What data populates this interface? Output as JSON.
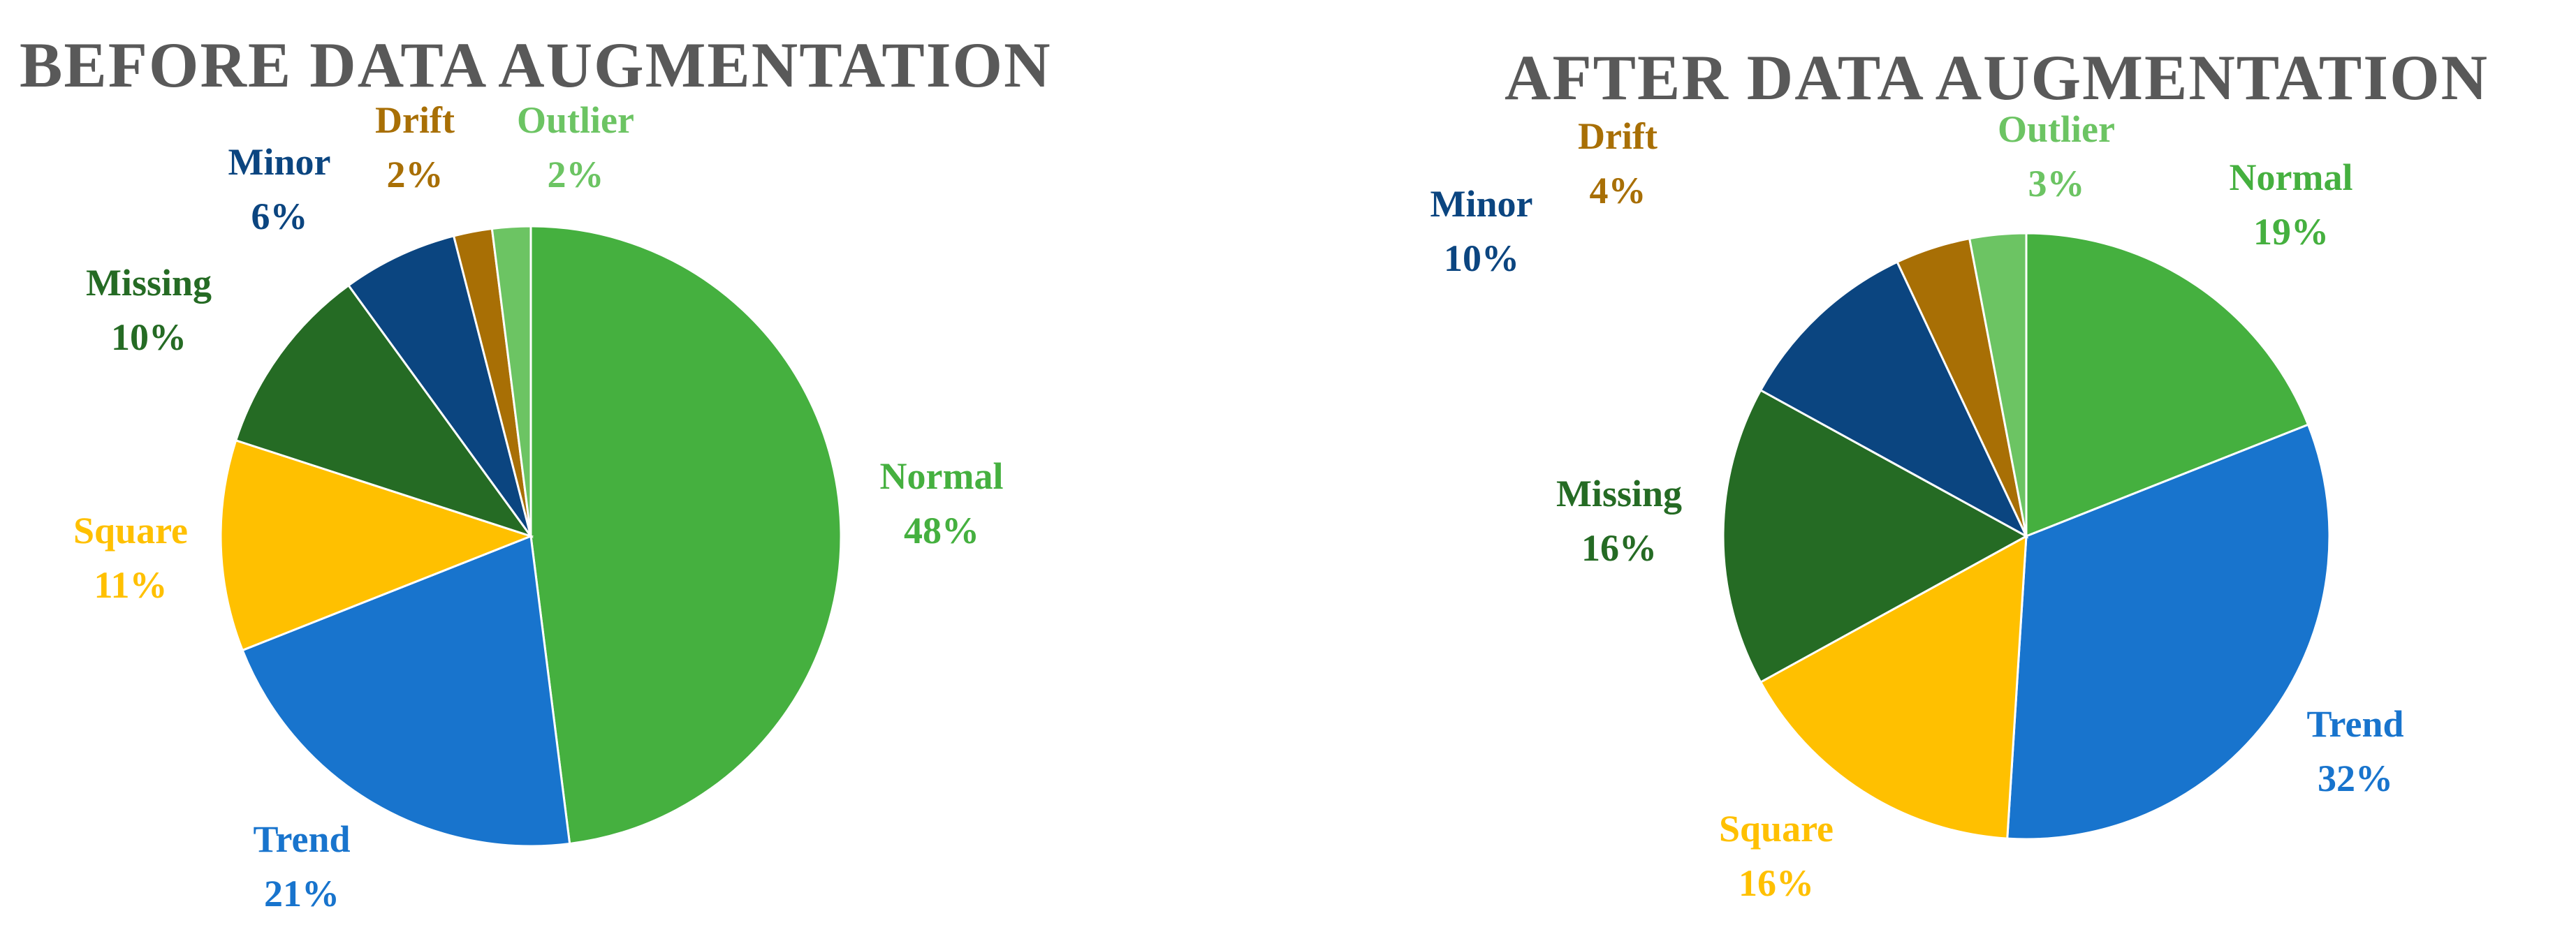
{
  "colors": {
    "Normal": "#45b03f",
    "Trend": "#1874cd",
    "Square": "#ffc000",
    "Missing": "#256b24",
    "Minor": "#0b4580",
    "Drift": "#a86f05",
    "Outlier": "#6cc463"
  },
  "chart_data": [
    {
      "type": "pie",
      "title": "BEFORE DATA AUGMENTATION",
      "slices": [
        {
          "label": "Normal",
          "value": 48,
          "pct_label": "48%"
        },
        {
          "label": "Trend",
          "value": 21,
          "pct_label": "21%"
        },
        {
          "label": "Square",
          "value": 11,
          "pct_label": "11%"
        },
        {
          "label": "Missing",
          "value": 10,
          "pct_label": "10%"
        },
        {
          "label": "Minor",
          "value": 6,
          "pct_label": "6%"
        },
        {
          "label": "Drift",
          "value": 2,
          "pct_label": "2%"
        },
        {
          "label": "Outlier",
          "value": 2,
          "pct_label": "2%"
        }
      ]
    },
    {
      "type": "pie",
      "title": "AFTER DATA AUGMENTATION",
      "slices": [
        {
          "label": "Normal",
          "value": 19,
          "pct_label": "19%"
        },
        {
          "label": "Trend",
          "value": 32,
          "pct_label": "32%"
        },
        {
          "label": "Square",
          "value": 16,
          "pct_label": "16%"
        },
        {
          "label": "Missing",
          "value": 16,
          "pct_label": "16%"
        },
        {
          "label": "Minor",
          "value": 10,
          "pct_label": "10%"
        },
        {
          "label": "Drift",
          "value": 4,
          "pct_label": "4%"
        },
        {
          "label": "Outlier",
          "value": 3,
          "pct_label": "3%"
        }
      ]
    }
  ]
}
